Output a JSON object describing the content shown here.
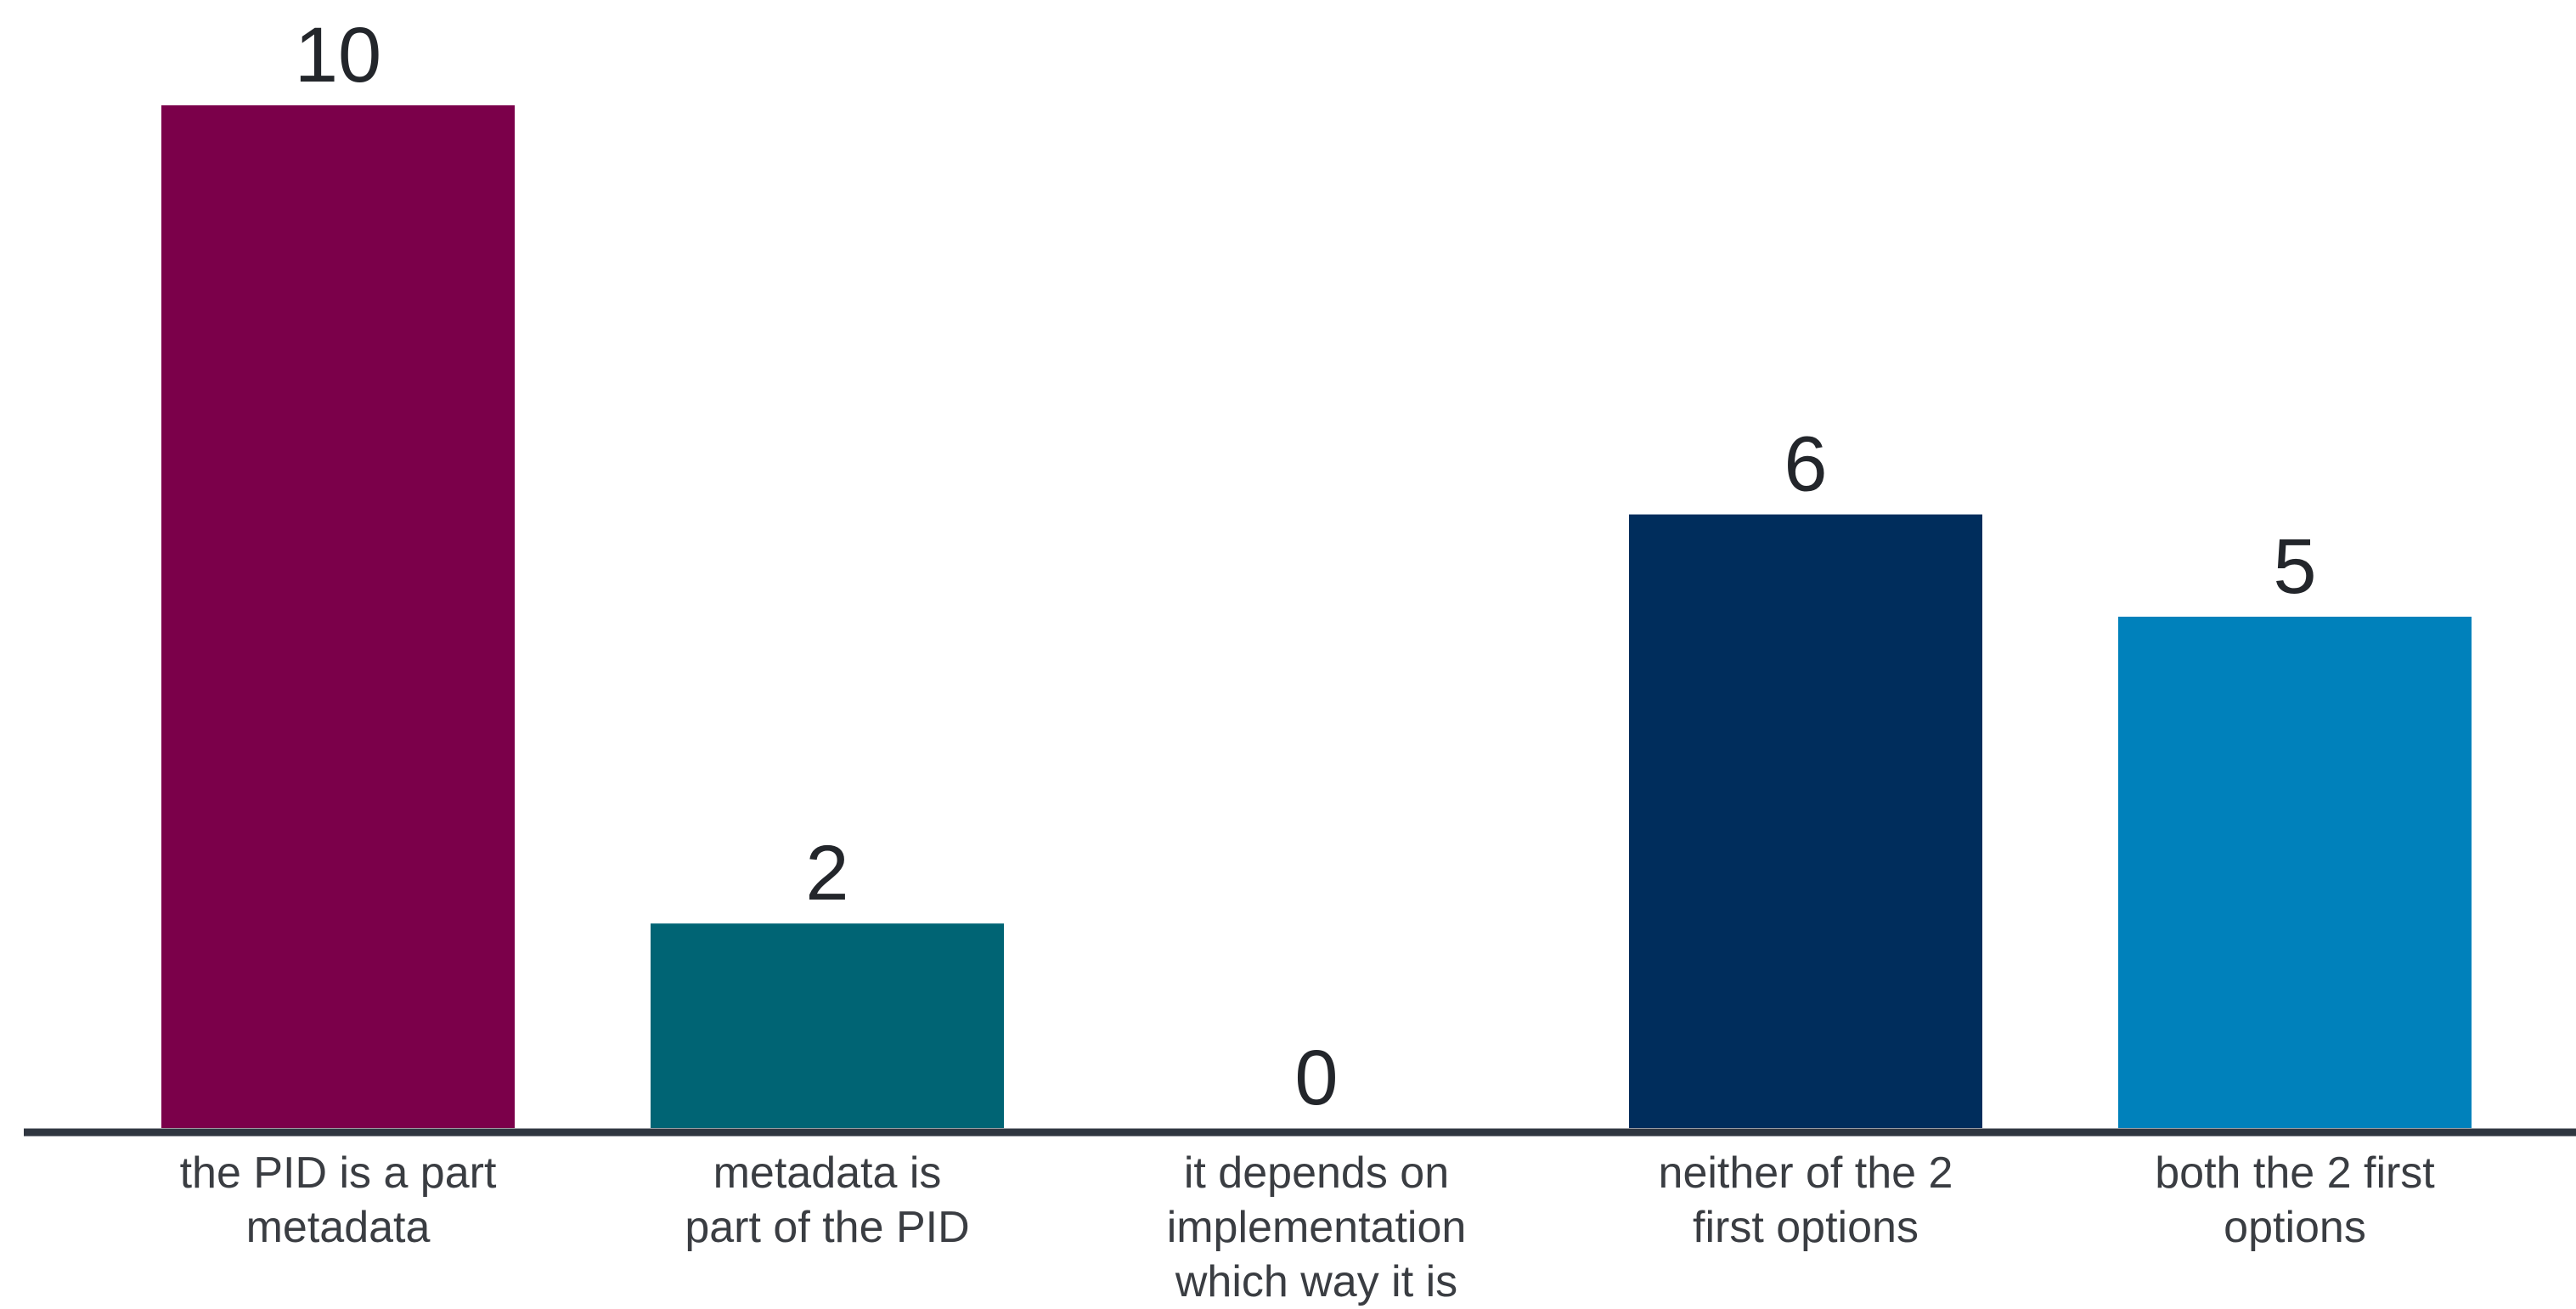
{
  "chart_data": {
    "type": "bar",
    "categories": [
      [
        "the PID is a part",
        "metadata"
      ],
      [
        "metadata is",
        "part of the PID"
      ],
      [
        "it depends on",
        "implementation",
        "which way it is"
      ],
      [
        "neither of the 2",
        "first options"
      ],
      [
        "both the 2 first",
        "options"
      ]
    ],
    "values": [
      10,
      2,
      0,
      6,
      5
    ],
    "value_labels": [
      "10",
      "2",
      "0",
      "6",
      "5"
    ],
    "colors": [
      "#7b004a",
      "#006474",
      "#1a2f55",
      "#002d5c",
      "#0081bb"
    ],
    "axis_color": "#2f3640",
    "ylim": [
      0,
      10
    ],
    "grid": false,
    "legend": "none",
    "title": "",
    "xlabel": "",
    "ylabel": ""
  }
}
